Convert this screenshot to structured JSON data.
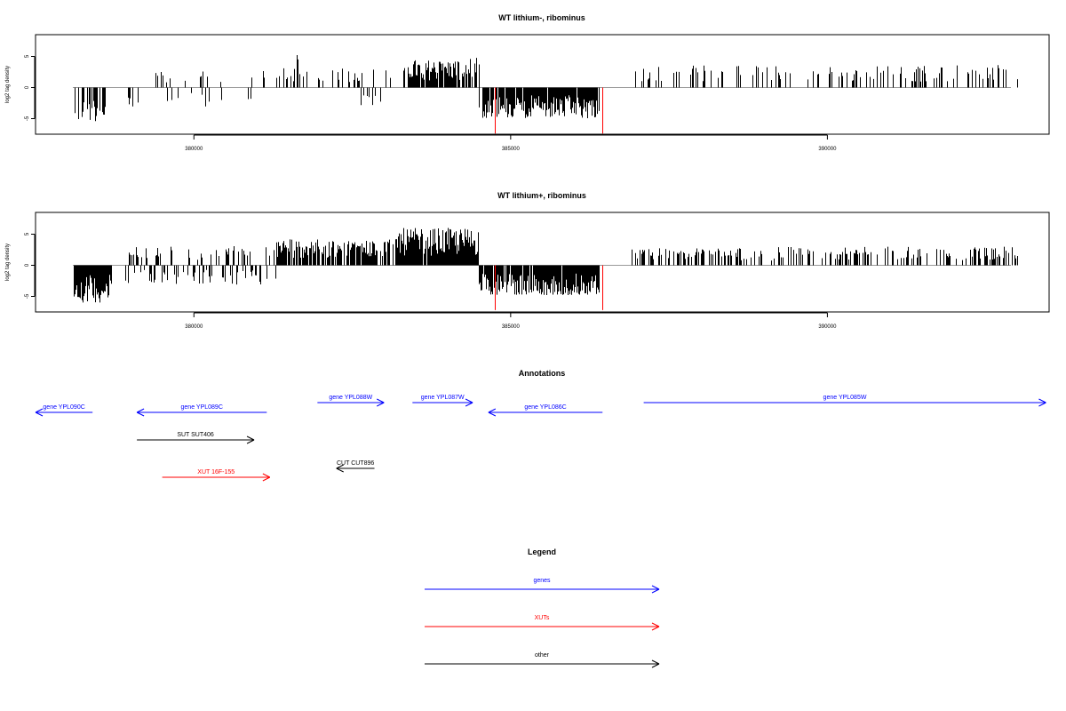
{
  "chart_data": [
    {
      "type": "bar",
      "title": "WT lithium-, ribominus",
      "ylabel": "log2 tag density",
      "xlim": [
        377500,
        393500
      ],
      "ylim": [
        -7.5,
        8.5
      ],
      "xticks": [
        380000,
        385000,
        390000
      ],
      "yticks": [
        -5,
        0,
        5
      ],
      "regions": [
        {
          "from": 378100,
          "to": 378600,
          "dir": -1,
          "density": 0.65,
          "max": 5.5
        },
        {
          "from": 378900,
          "to": 379200,
          "dir": -1,
          "density": 0.25,
          "max": 3.5
        },
        {
          "from": 379400,
          "to": 380000,
          "dir": 0,
          "density": 0.3,
          "max": 2.5
        },
        {
          "from": 380000,
          "to": 380600,
          "dir": 0,
          "density": 0.25,
          "max": 3.2
        },
        {
          "from": 380800,
          "to": 381200,
          "dir": 0,
          "density": 0.2,
          "max": 3.2
        },
        {
          "from": 381300,
          "to": 381600,
          "dir": 1,
          "density": 0.3,
          "max": 3.5
        },
        {
          "from": 381600,
          "to": 381800,
          "dir": 1,
          "density": 0.5,
          "max": 6.0
        },
        {
          "from": 381800,
          "to": 382600,
          "dir": 1,
          "density": 0.3,
          "max": 3.2
        },
        {
          "from": 382600,
          "to": 383200,
          "dir": 0,
          "density": 0.25,
          "max": 3.0
        },
        {
          "from": 383300,
          "to": 384300,
          "dir": 1,
          "density": 0.85,
          "max": 4.5
        },
        {
          "from": 384300,
          "to": 384500,
          "dir": 1,
          "density": 0.5,
          "max": 4.8
        },
        {
          "from": 384500,
          "to": 386400,
          "dir": -1,
          "density": 0.9,
          "max": 5.0
        },
        {
          "from": 386900,
          "to": 393000,
          "dir": 1,
          "density": 0.22,
          "max": 3.6
        }
      ],
      "red_spikes": [
        [
          384750,
          -7.4
        ],
        [
          386450,
          -7.4
        ]
      ]
    },
    {
      "type": "bar",
      "title": "WT lithium+, ribominus",
      "ylabel": "log2 tag density",
      "xlim": [
        377500,
        393500
      ],
      "ylim": [
        -7.5,
        8.5
      ],
      "xticks": [
        380000,
        385000,
        390000
      ],
      "yticks": [
        -5,
        0,
        5
      ],
      "regions": [
        {
          "from": 378100,
          "to": 378700,
          "dir": -1,
          "density": 0.95,
          "max": 6.0
        },
        {
          "from": 378900,
          "to": 379500,
          "dir": 0,
          "density": 0.4,
          "max": 3.0
        },
        {
          "from": 379500,
          "to": 380500,
          "dir": 0,
          "density": 0.55,
          "max": 3.0
        },
        {
          "from": 380500,
          "to": 381300,
          "dir": 0,
          "density": 0.55,
          "max": 3.2
        },
        {
          "from": 381300,
          "to": 381800,
          "dir": 1,
          "density": 0.85,
          "max": 4.5
        },
        {
          "from": 381800,
          "to": 383200,
          "dir": 1,
          "density": 0.7,
          "max": 4.2
        },
        {
          "from": 383200,
          "to": 384500,
          "dir": 1,
          "density": 0.97,
          "max": 6.0
        },
        {
          "from": 384500,
          "to": 386400,
          "dir": -1,
          "density": 0.92,
          "max": 4.8
        },
        {
          "from": 386900,
          "to": 388800,
          "dir": 1,
          "density": 0.45,
          "max": 2.8
        },
        {
          "from": 388800,
          "to": 393000,
          "dir": 1,
          "density": 0.35,
          "max": 3.0
        }
      ],
      "red_spikes": [
        [
          384750,
          -7.2
        ],
        [
          386450,
          -7.2
        ]
      ]
    }
  ],
  "annotations": {
    "title": "Annotations",
    "xlim": [
      377500,
      393500
    ],
    "items": [
      {
        "label": "gene YPL090C",
        "start": 377500,
        "end": 378400,
        "strand": "-",
        "row": 1,
        "color": "#0000ff"
      },
      {
        "label": "gene YPL089C",
        "start": 379100,
        "end": 381150,
        "strand": "-",
        "row": 1,
        "color": "#0000ff"
      },
      {
        "label": "gene YPL088W",
        "start": 381950,
        "end": 383000,
        "strand": "+",
        "row": 0,
        "color": "#0000ff"
      },
      {
        "label": "gene YPL087W",
        "start": 383450,
        "end": 384400,
        "strand": "+",
        "row": 0,
        "color": "#0000ff"
      },
      {
        "label": "gene YPL086C",
        "start": 384650,
        "end": 386450,
        "strand": "-",
        "row": 1,
        "color": "#0000ff"
      },
      {
        "label": "gene YPL085W",
        "start": 387100,
        "end": 393450,
        "strand": "+",
        "row": 0,
        "color": "#0000ff"
      },
      {
        "label": "SUT SUT406",
        "start": 379100,
        "end": 380950,
        "strand": "+",
        "row": 2,
        "color": "#000000"
      },
      {
        "label": "CUT CUT896",
        "start": 382250,
        "end": 382850,
        "strand": "-",
        "row": 3,
        "color": "#000000"
      },
      {
        "label": "XUT 16F-155",
        "start": 379500,
        "end": 381200,
        "strand": "+",
        "row": 4,
        "color": "#ff0000"
      }
    ]
  },
  "legend": {
    "title": "Legend",
    "items": [
      {
        "label": "genes",
        "color": "#0000ff"
      },
      {
        "label": "XUTs",
        "color": "#ff0000"
      },
      {
        "label": "other",
        "color": "#000000"
      }
    ]
  }
}
